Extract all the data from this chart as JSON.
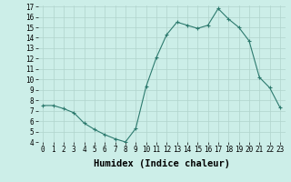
{
  "x": [
    0,
    1,
    2,
    3,
    4,
    5,
    6,
    7,
    8,
    9,
    10,
    11,
    12,
    13,
    14,
    15,
    16,
    17,
    18,
    19,
    20,
    21,
    22,
    23
  ],
  "y": [
    7.5,
    7.5,
    7.2,
    6.8,
    5.8,
    5.2,
    4.7,
    4.3,
    4.0,
    5.3,
    9.3,
    12.1,
    14.3,
    15.5,
    15.2,
    14.9,
    15.2,
    16.8,
    15.8,
    15.0,
    13.7,
    10.2,
    9.2,
    7.3
  ],
  "xlabel": "Humidex (Indice chaleur)",
  "ylim": [
    4,
    17
  ],
  "xlim": [
    -0.5,
    23.5
  ],
  "yticks": [
    4,
    5,
    6,
    7,
    8,
    9,
    10,
    11,
    12,
    13,
    14,
    15,
    16,
    17
  ],
  "xticks": [
    0,
    1,
    2,
    3,
    4,
    5,
    6,
    7,
    8,
    9,
    10,
    11,
    12,
    13,
    14,
    15,
    16,
    17,
    18,
    19,
    20,
    21,
    22,
    23
  ],
  "xtick_labels": [
    "0",
    "1",
    "2",
    "3",
    "4",
    "5",
    "6",
    "7",
    "8",
    "9",
    "10",
    "11",
    "12",
    "13",
    "14",
    "15",
    "16",
    "17",
    "18",
    "19",
    "20",
    "21",
    "22",
    "23"
  ],
  "line_color": "#2d7a6e",
  "marker": "+",
  "bg_color": "#cceee8",
  "grid_color": "#b0d4cc",
  "tick_fontsize": 5.5,
  "xlabel_fontsize": 7.5
}
